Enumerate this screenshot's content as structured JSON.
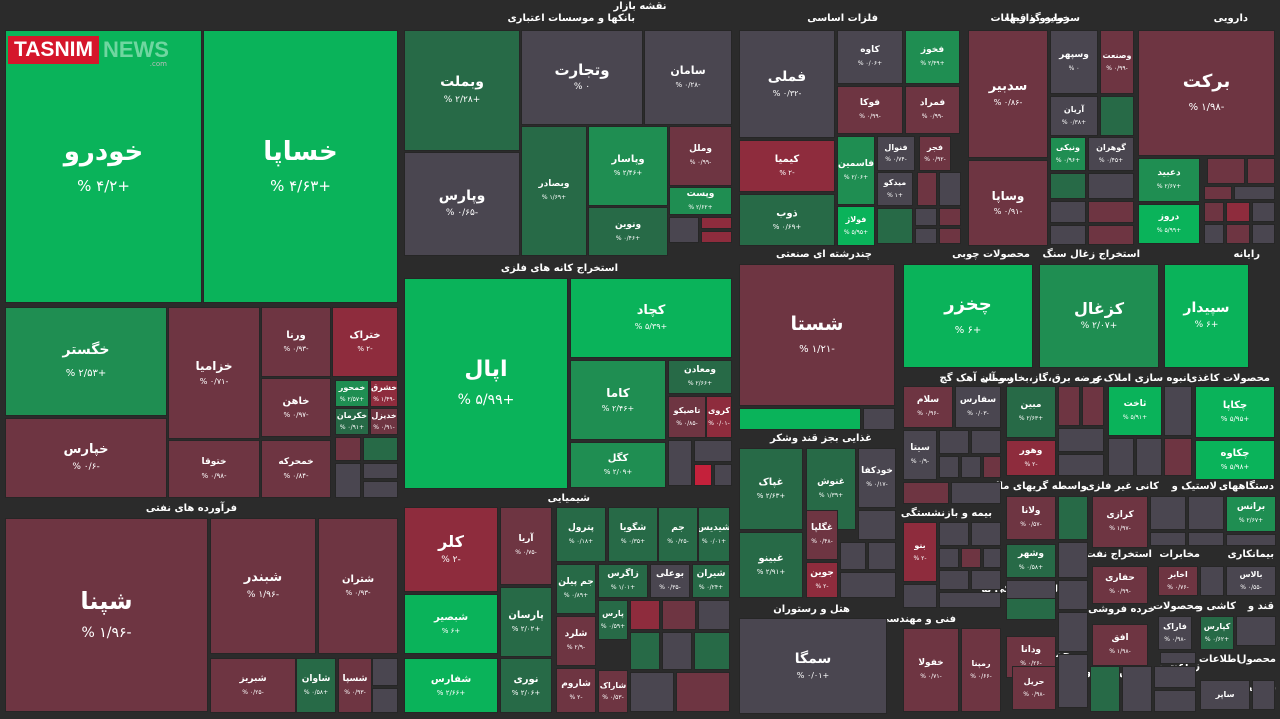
{
  "header": {
    "title": "نقشه بازار"
  },
  "logo": {
    "brand": "TASNIM",
    "news": "NEWS",
    "domain": ".com"
  },
  "colors": {
    "gs": "#0ab35a",
    "gm": "#1f8e52",
    "gd": "#276a47",
    "nu": "#4a4650",
    "rd": "#5a3640",
    "rm": "#6e3542",
    "rs": "#8e2c3d",
    "rx": "#c4213b"
  },
  "chart_data": {
    "type": "treemap",
    "sectors": [
      "خودرو و قطعات",
      "بانکها و موسسات اعتباری",
      "فلزات اساسی",
      "سرمایه گذاریها",
      "دارویی",
      "استخراج کانه های فلزی",
      "چندرشته ای صنعتی",
      "محصولات چوبی",
      "استخراج زغال سنگ",
      "رایانه",
      "سیمان آهک گچ",
      "عرضه برق،گاز،بخار و آب",
      "انبوه سازی املاک و",
      "محصولات کاغذی",
      "غذایی بجز قند وشکر",
      "واسطه گریهای مالی",
      "کانی غیر فلزی",
      "لاستیک و",
      "دستگاههای",
      "فرآورده های نفتی",
      "شیمیایی",
      "بیمه و بازنشستگی",
      "استخراج نفت",
      "مخابرات",
      "بیمانکاری",
      "فعالیتهای کمکی به",
      "خرده فروشی",
      "محصولات",
      "کاشی و",
      "قند و",
      "هتل و رستوران",
      "فنی و مهندسی",
      "حمل و نقل",
      "ماشین آلات و",
      "زراعت و",
      "اطلاعات",
      "محصول",
      "سا فعال"
    ],
    "tiles": [
      {
        "name": "خودرو",
        "change": "+۴/۲ %"
      },
      {
        "name": "خساپا",
        "change": "+۴/۶۳ %"
      },
      {
        "name": "خگستر",
        "change": "+۲/۵۳ %"
      },
      {
        "name": "خزامیا",
        "change": "-۰/۷۱ %"
      },
      {
        "name": "ورنا",
        "change": "-۰/۹۳ %"
      },
      {
        "name": "ختراک",
        "change": "-۲ %"
      },
      {
        "name": "خپارس",
        "change": "-۰/۶ %"
      },
      {
        "name": "خاهن",
        "change": "-۰/۹۷ %"
      },
      {
        "name": "خمحور",
        "change": "+۲/۵۷ %"
      },
      {
        "name": "خشرق",
        "change": "-۱/۴۹ %"
      },
      {
        "name": "ختوقا",
        "change": "-۰/۹۸ %"
      },
      {
        "name": "خمحرکه",
        "change": "-۰/۸۴ %"
      },
      {
        "name": "خکرمان",
        "change": "+۰/۹۱ %"
      },
      {
        "name": "خدیزل",
        "change": "-۰/۹۱ %"
      },
      {
        "name": "وبملت",
        "change": "+۲/۲۸ %"
      },
      {
        "name": "وتجارت",
        "change": "۰ %"
      },
      {
        "name": "سامان",
        "change": "-۰/۲۸ %"
      },
      {
        "name": "وپارس",
        "change": "-۰/۶۵ %"
      },
      {
        "name": "وبصادر",
        "change": "+۱/۶۹ %"
      },
      {
        "name": "وپاسار",
        "change": "+۲/۴۶ %"
      },
      {
        "name": "وملل",
        "change": "-۰/۹۹ %"
      },
      {
        "name": "ونوین",
        "change": "+۰/۴۶ %"
      },
      {
        "name": "وپست",
        "change": "+۲/۶۲ %"
      },
      {
        "name": "فملی",
        "change": "-۰/۳۲ %"
      },
      {
        "name": "کاوه",
        "change": "+۰/۰۶ %"
      },
      {
        "name": "فخوز",
        "change": "+۲/۴۹ %"
      },
      {
        "name": "فوکا",
        "change": "-۰/۹۹ %"
      },
      {
        "name": "فمراد",
        "change": "-۰/۹۹ %"
      },
      {
        "name": "کیمیا",
        "change": "-۲ %"
      },
      {
        "name": "فاسمین",
        "change": "+۲/۰۶ %"
      },
      {
        "name": "فنوال",
        "change": "-۰/۷۴ %"
      },
      {
        "name": "فجر",
        "change": "-۰/۹۲ %"
      },
      {
        "name": "میدکو",
        "change": "+۱ %"
      },
      {
        "name": "ذوب",
        "change": "+۰/۶۹ %"
      },
      {
        "name": "فولاژ",
        "change": "+۵/۹۵ %"
      },
      {
        "name": "سدبیر",
        "change": "-۰/۸۶ %"
      },
      {
        "name": "وسپهر",
        "change": "۰ %"
      },
      {
        "name": "وصنعت",
        "change": "-۰/۹۹ %"
      },
      {
        "name": "آریان",
        "change": "+۰/۳۸ %"
      },
      {
        "name": "ونیکی",
        "change": "+۰/۹۶ %"
      },
      {
        "name": "گوهران",
        "change": "+۰/۴۵ %"
      },
      {
        "name": "وساپا",
        "change": "-۰/۹۱ %"
      },
      {
        "name": "برکت",
        "change": "-۱/۹۸ %"
      },
      {
        "name": "دعبید",
        "change": "+۲/۶۷ %"
      },
      {
        "name": "دروز",
        "change": "+۵/۹۹ %"
      },
      {
        "name": "اپال",
        "change": "+۵/۹۹ %"
      },
      {
        "name": "کچاد",
        "change": "+۵/۳۹ %"
      },
      {
        "name": "کاما",
        "change": "+۲/۴۶ %"
      },
      {
        "name": "ومعادن",
        "change": "+۲/۶۶ %"
      },
      {
        "name": "تاصیکو",
        "change": "-۰/۸۵ %"
      },
      {
        "name": "کروی",
        "change": "-۰/۰۱ %"
      },
      {
        "name": "کگل",
        "change": "+۲/۰۹ %"
      },
      {
        "name": "شستا",
        "change": "-۱/۲۱ %"
      },
      {
        "name": "چخزر",
        "change": "+۶ %"
      },
      {
        "name": "کزغال",
        "change": "+۲/۰۷ %"
      },
      {
        "name": "سپیدار",
        "change": "+۶ %"
      },
      {
        "name": "سلام",
        "change": "-۰/۹۶ %"
      },
      {
        "name": "سفارس",
        "change": "-۰/۰۳ %"
      },
      {
        "name": "سیتا",
        "change": "-۰/۹ %"
      },
      {
        "name": "مبین",
        "change": "+۲/۶۳ %"
      },
      {
        "name": "وهور",
        "change": "-۲ %"
      },
      {
        "name": "ثاخت",
        "change": "+۵/۹۱ %"
      },
      {
        "name": "چکاپا",
        "change": "+۵/۹۵ %"
      },
      {
        "name": "چکاوه",
        "change": "+۵/۹۸ %"
      },
      {
        "name": "غپاک",
        "change": "+۲/۶۳ %"
      },
      {
        "name": "غنوش",
        "change": "+۱/۳۹ %"
      },
      {
        "name": "خودکفا",
        "change": "-۰/۱۷ %"
      },
      {
        "name": "غگلپا",
        "change": "-۰/۴۸ %"
      },
      {
        "name": "غبینو",
        "change": "+۲/۹۱ %"
      },
      {
        "name": "جوین",
        "change": "-۲ %"
      },
      {
        "name": "ولانا",
        "change": "-۰/۵۷ %"
      },
      {
        "name": "وشهر",
        "change": "+۰/۵۸ %"
      },
      {
        "name": "کرازی",
        "change": "-۱/۹۷ %"
      },
      {
        "name": "برانس",
        "change": "+۲/۶۷ %"
      },
      {
        "name": "شپنا",
        "change": "-۱/۹۶ %"
      },
      {
        "name": "شبندر",
        "change": "-۱/۹۶ %"
      },
      {
        "name": "شتران",
        "change": "-۰/۹۳ %"
      },
      {
        "name": "شبریز",
        "change": "-۰/۲۵ %"
      },
      {
        "name": "شاوان",
        "change": "+۰/۵۸ %"
      },
      {
        "name": "شسپا",
        "change": "-۰/۹۳ %"
      },
      {
        "name": "کلر",
        "change": "-۲ %"
      },
      {
        "name": "آریا",
        "change": "-۰/۷۵ %"
      },
      {
        "name": "پترول",
        "change": "+۰/۱۸ %"
      },
      {
        "name": "شگویا",
        "change": "+۰/۳۵ %"
      },
      {
        "name": "جم",
        "change": "-۰/۲۵ %"
      },
      {
        "name": "شیدیس",
        "change": "+۰/۰۱ %"
      },
      {
        "name": "جم پیلن",
        "change": "+۰/۸۹ %"
      },
      {
        "name": "زاگرس",
        "change": "+۱/۰۱ %"
      },
      {
        "name": "بوعلی",
        "change": "-۰/۳۵ %"
      },
      {
        "name": "شیران",
        "change": "+۰/۲۴ %"
      },
      {
        "name": "شبصیر",
        "change": "+۶ %"
      },
      {
        "name": "پارسان",
        "change": "+۲/۰۲ %"
      },
      {
        "name": "پارس",
        "change": "+۰/۵۹ %"
      },
      {
        "name": "شفارس",
        "change": "+۲/۶۶ %"
      },
      {
        "name": "نوری",
        "change": "+۲/۰۶ %"
      },
      {
        "name": "شلرد",
        "change": "-۲/۹ %"
      },
      {
        "name": "شاروم",
        "change": "-۲ %"
      },
      {
        "name": "شاراک",
        "change": "-۰/۵۳ %"
      },
      {
        "name": "ودانا",
        "change": "-۰/۲۶ %"
      },
      {
        "name": "بنو",
        "change": "-۲ %"
      },
      {
        "name": "حفاری",
        "change": "-۰/۹۹ %"
      },
      {
        "name": "اخابر",
        "change": "-۰/۷۶ %"
      },
      {
        "name": "بالاس",
        "change": "-۰/۵۵ %"
      },
      {
        "name": "افق",
        "change": "-۱/۹۸ %"
      },
      {
        "name": "فاراک",
        "change": "-۰/۹۸ %"
      },
      {
        "name": "کپارس",
        "change": "+۰/۶۲ %"
      },
      {
        "name": "سمگا",
        "change": "+۰/۰۱ %"
      },
      {
        "name": "خفولا",
        "change": "-۰/۷۱ %"
      },
      {
        "name": "رمپنا",
        "change": "-۰/۶۶ %"
      },
      {
        "name": "حریل",
        "change": "-۰/۹۸ %"
      },
      {
        "name": "ساپر",
        "change": ""
      }
    ]
  }
}
